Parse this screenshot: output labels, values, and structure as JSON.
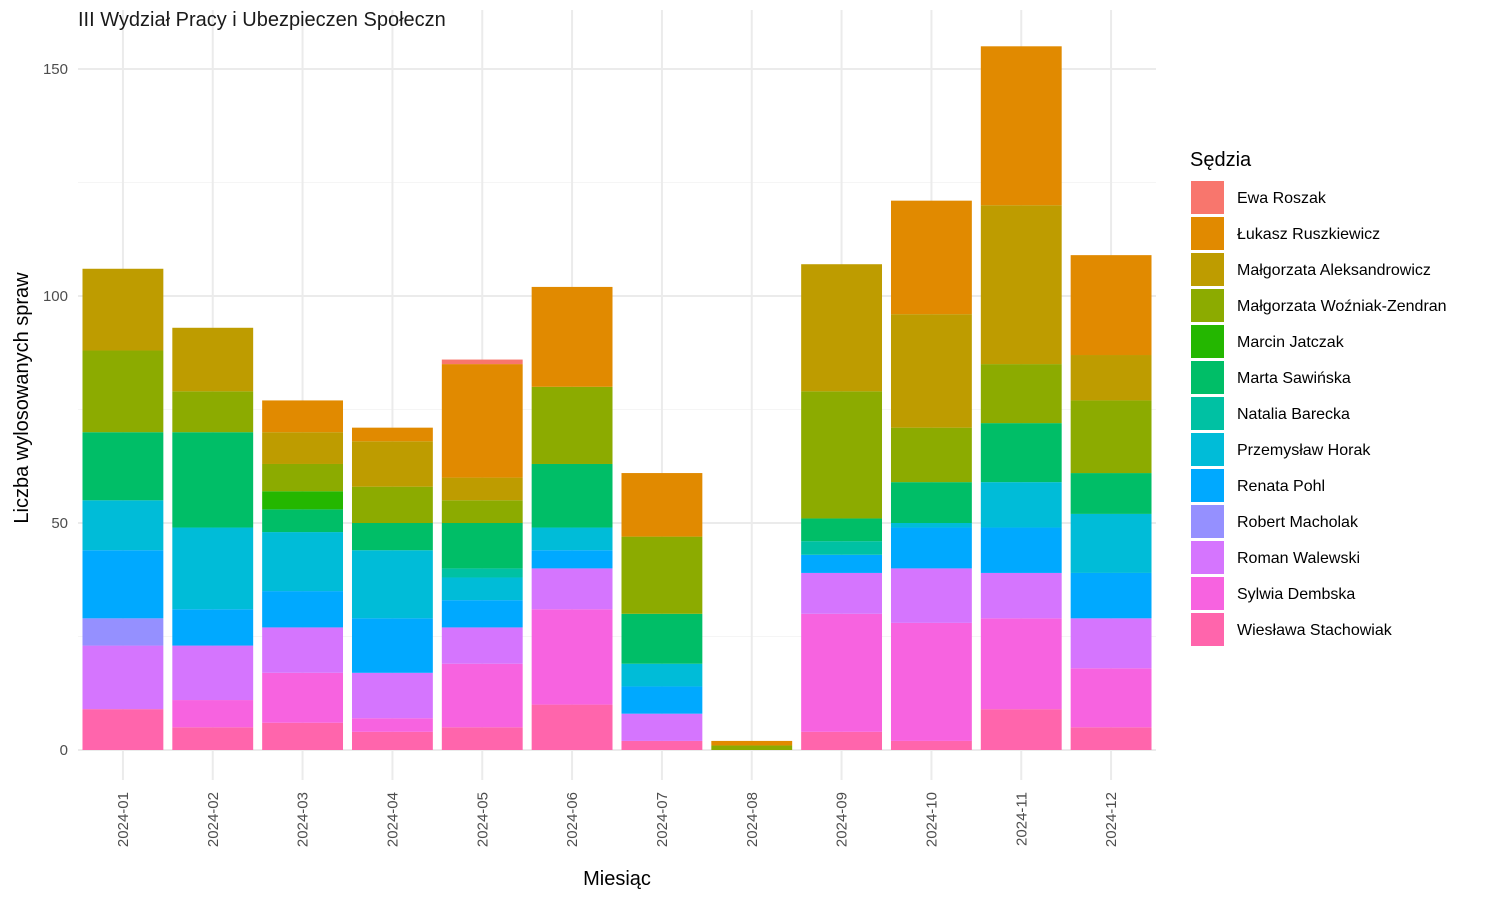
{
  "chart_data": {
    "type": "bar",
    "stacked": true,
    "title": "III Wydział Pracy i Ubezpieczen Społeczn",
    "xlabel": "Miesiąc",
    "ylabel": "Liczba wylosowanych spraw",
    "ylim": [
      -6,
      158
    ],
    "yticks": [
      0,
      50,
      100,
      150
    ],
    "grid": true,
    "legend_position": "right",
    "legend_title": "Sędzia",
    "categories": [
      "2024-01",
      "2024-02",
      "2024-03",
      "2024-04",
      "2024-05",
      "2024-06",
      "2024-07",
      "2024-08",
      "2024-09",
      "2024-10",
      "2024-11",
      "2024-12"
    ],
    "series": [
      {
        "name": "Wiesława Stachowiak",
        "color": "#FF65AC",
        "values": [
          9,
          5,
          6,
          4,
          5,
          10,
          2,
          0,
          4,
          2,
          9,
          5
        ]
      },
      {
        "name": "Sylwia Dembska",
        "color": "#F763E0",
        "values": [
          0,
          6,
          11,
          3,
          14,
          21,
          0,
          0,
          26,
          26,
          20,
          13
        ]
      },
      {
        "name": "Roman Walewski",
        "color": "#D575FE",
        "values": [
          14,
          12,
          10,
          10,
          8,
          9,
          6,
          0,
          9,
          12,
          10,
          11
        ]
      },
      {
        "name": "Robert Macholak",
        "color": "#9590FF",
        "values": [
          6,
          0,
          0,
          0,
          0,
          0,
          0,
          0,
          0,
          0,
          0,
          0
        ]
      },
      {
        "name": "Renata Pohl",
        "color": "#00A9FF",
        "values": [
          15,
          8,
          8,
          12,
          6,
          4,
          6,
          0,
          4,
          9,
          10,
          10
        ]
      },
      {
        "name": "Przemysław Horak",
        "color": "#00BCD8",
        "values": [
          11,
          18,
          13,
          15,
          5,
          5,
          5,
          0,
          0,
          1,
          10,
          13
        ]
      },
      {
        "name": "Natalia Barecka",
        "color": "#00C1A3",
        "values": [
          0,
          0,
          0,
          0,
          2,
          0,
          0,
          0,
          3,
          0,
          0,
          0
        ]
      },
      {
        "name": "Marta Sawińska",
        "color": "#00BE67",
        "values": [
          15,
          21,
          5,
          6,
          10,
          14,
          11,
          0,
          5,
          9,
          13,
          9
        ]
      },
      {
        "name": "Marcin Jatczak",
        "color": "#24B700",
        "values": [
          0,
          0,
          4,
          0,
          0,
          0,
          0,
          0,
          0,
          0,
          0,
          0
        ]
      },
      {
        "name": "Małgorzata Woźniak-Zendran",
        "color": "#8CAB00",
        "values": [
          18,
          9,
          6,
          8,
          5,
          17,
          17,
          1,
          28,
          12,
          13,
          16
        ]
      },
      {
        "name": "Małgorzata Aleksandrowicz",
        "color": "#BE9C00",
        "values": [
          18,
          14,
          7,
          10,
          5,
          0,
          0,
          0,
          28,
          25,
          35,
          10
        ]
      },
      {
        "name": "Łukasz Ruszkiewicz",
        "color": "#E18A00",
        "values": [
          0,
          0,
          7,
          3,
          25,
          22,
          14,
          1,
          0,
          25,
          35,
          22
        ]
      },
      {
        "name": "Ewa Roszak",
        "color": "#F8766D",
        "values": [
          0,
          0,
          0,
          0,
          1,
          0,
          0,
          0,
          0,
          0,
          0,
          0
        ]
      }
    ]
  }
}
